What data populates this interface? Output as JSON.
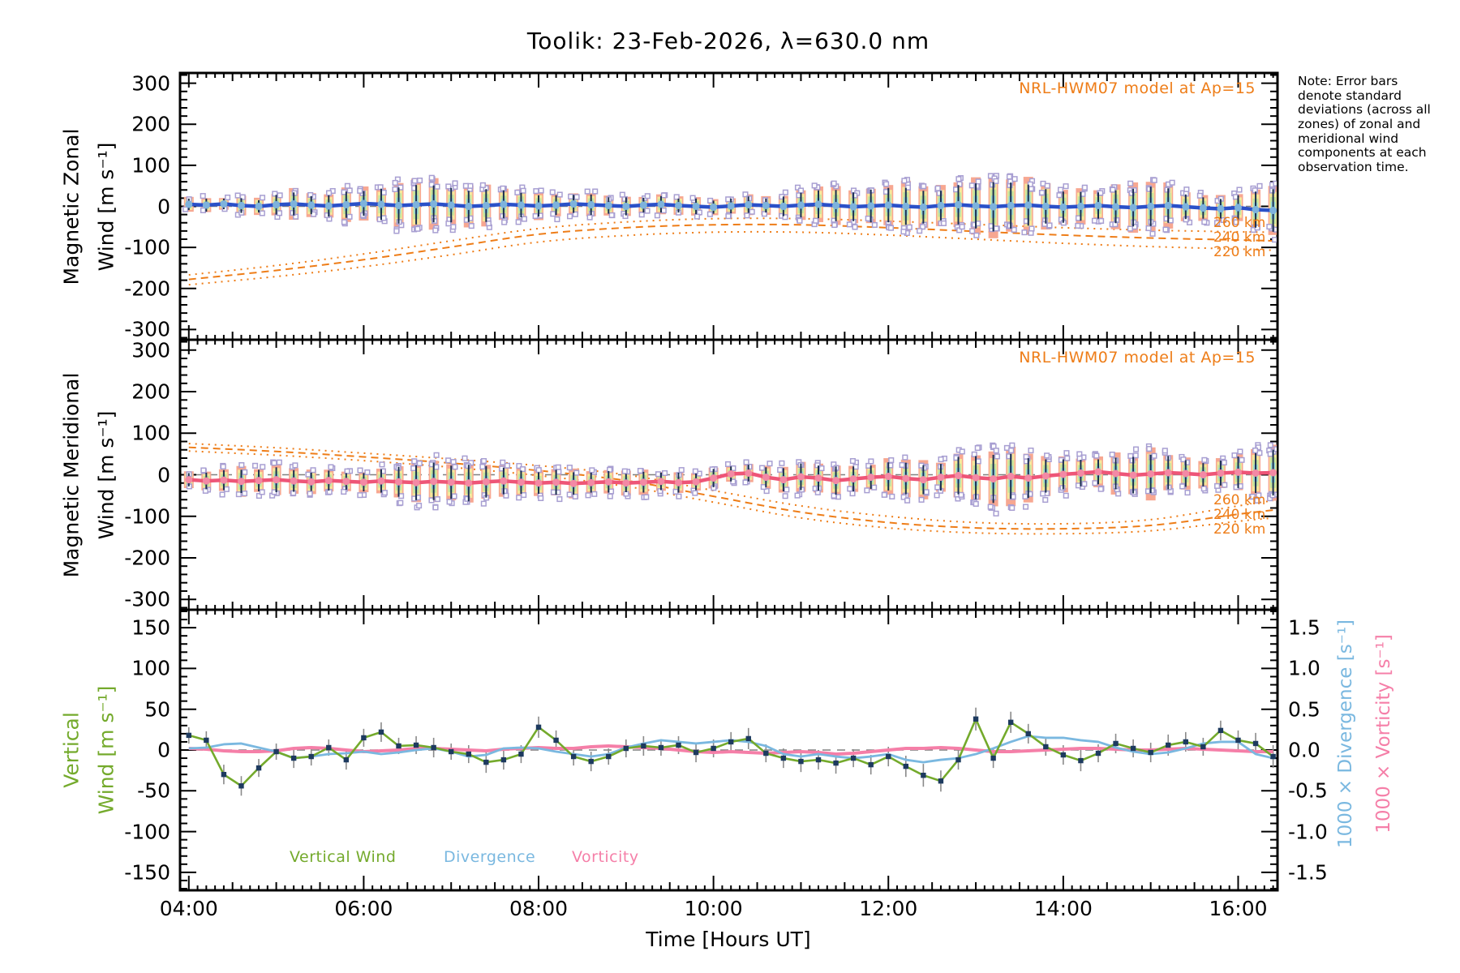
{
  "title": "Toolik: 23-Feb-2026, λ=630.0 nm",
  "note_text": "Note: Error bars denote standard deviations (across all zones) of zonal and meridional wind components at each observation time.",
  "x_axis": {
    "label": "Time [Hours UT]",
    "tick_labels": [
      "04:00",
      "06:00",
      "08:00",
      "10:00",
      "12:00",
      "14:00",
      "16:00"
    ],
    "tick_hours": [
      4,
      6,
      8,
      10,
      12,
      14,
      16
    ],
    "range_hours": [
      3.9,
      16.45
    ]
  },
  "panels": [
    {
      "id": "magnetic-zonal",
      "axis_title_line1": "Magnetic Zonal",
      "axis_title_line2": "Wind [m s⁻¹]",
      "y_tick_labels": [
        "300",
        "200",
        "100",
        "0",
        "-100",
        "-200",
        "-300"
      ],
      "y_tick_values": [
        300,
        200,
        100,
        0,
        -100,
        -200,
        -300
      ],
      "ylim": [
        -325,
        325
      ],
      "model_annotation": "NRL-HWM07 model at Ap=15",
      "model_altitude_labels": [
        "260 km",
        "240 km",
        "220 km"
      ]
    },
    {
      "id": "magnetic-meridional",
      "axis_title_line1": "Magnetic Meridional",
      "axis_title_line2": "Wind [m s⁻¹]",
      "y_tick_labels": [
        "300",
        "200",
        "100",
        "0",
        "-100",
        "-200",
        "-300"
      ],
      "y_tick_values": [
        300,
        200,
        100,
        0,
        -100,
        -200,
        -300
      ],
      "ylim": [
        -325,
        325
      ],
      "model_annotation": "NRL-HWM07 model at Ap=15",
      "model_altitude_labels": [
        "260 km",
        "240 km",
        "220 km"
      ]
    },
    {
      "id": "vertical-wind",
      "axis_title_line1": "Vertical",
      "axis_title_line2": "Wind [m s⁻¹]",
      "y_tick_labels": [
        "150",
        "100",
        "50",
        "0",
        "-50",
        "-100",
        "-150"
      ],
      "y_tick_values": [
        150,
        100,
        50,
        0,
        -50,
        -100,
        -150
      ],
      "ylim": [
        -172,
        172
      ],
      "right_tick_labels": [
        "1.5",
        "1.0",
        "0.5",
        "0.0",
        "-0.5",
        "-1.0",
        "-1.5"
      ],
      "right_tick_values": [
        1.5,
        1.0,
        0.5,
        0.0,
        -0.5,
        -1.0,
        -1.5
      ],
      "right_ylim": [
        -1.72,
        1.72
      ],
      "right_axes": [
        {
          "label": "1000 × Divergence [s⁻¹]",
          "color": "#7ab8e0"
        },
        {
          "label": "1000 × Vorticity [s⁻¹]",
          "color": "#f57fa8"
        }
      ],
      "legend": [
        {
          "label": "Vertical Wind",
          "color": "#74aa2c"
        },
        {
          "label": "Divergence",
          "color": "#7ab8e0"
        },
        {
          "label": "Vorticity",
          "color": "#f57fa8"
        }
      ]
    }
  ],
  "colors": {
    "model_orange": "#ee7d18",
    "zonal_line": "#2b50c8",
    "zonal_marker": "#7db2dc",
    "meridional_line": "#ee5577",
    "meridional_marker": "#f389a4",
    "errorbar_navy": "#1b3050",
    "scatter_square": "#a89fd2",
    "band_salmon": "#f7a791",
    "band_yellow": "#f5e69b",
    "band_green": "#c4e39c",
    "band_cyan": "#97d6dc",
    "vertical_green": "#74aa2c",
    "divergence_blue": "#7ab8e0",
    "vorticity_pink": "#f57fa8",
    "marker_navy": "#1d3a5f",
    "errorbar_gray": "#8a8a8a",
    "zero_line_gray": "#808080",
    "axis_black": "#000000"
  },
  "chart_data": [
    {
      "type": "line",
      "name": "magnetic_zonal_wind",
      "title": "Magnetic Zonal Wind",
      "ylabel": "Magnetic Zonal Wind [m s-1]",
      "xlabel": "Time [Hours UT]",
      "ylim": [
        -325,
        325
      ],
      "x_hours": [
        4.0,
        4.2,
        4.4,
        4.6,
        4.8,
        5.0,
        5.2,
        5.4,
        5.6,
        5.8,
        6.0,
        6.2,
        6.4,
        6.6,
        6.8,
        7.0,
        7.2,
        7.4,
        7.6,
        7.8,
        8.0,
        8.2,
        8.4,
        8.6,
        8.8,
        9.0,
        9.2,
        9.4,
        9.6,
        9.8,
        10.0,
        10.2,
        10.4,
        10.6,
        10.8,
        11.0,
        11.2,
        11.4,
        11.6,
        11.8,
        12.0,
        12.2,
        12.4,
        12.6,
        12.8,
        13.0,
        13.2,
        13.4,
        13.6,
        13.8,
        14.0,
        14.2,
        14.4,
        14.6,
        14.8,
        15.0,
        15.2,
        15.4,
        15.6,
        15.8,
        16.0,
        16.2,
        16.4
      ],
      "mean": [
        5,
        3,
        6,
        2,
        0,
        4,
        6,
        3,
        1,
        4,
        7,
        5,
        2,
        4,
        6,
        3,
        0,
        2,
        5,
        3,
        1,
        3,
        6,
        4,
        2,
        0,
        3,
        5,
        2,
        0,
        -2,
        1,
        4,
        2,
        0,
        3,
        5,
        2,
        -1,
        1,
        3,
        0,
        -2,
        2,
        4,
        1,
        -1,
        2,
        3,
        0,
        -2,
        0,
        2,
        -1,
        -3,
        0,
        2,
        -1,
        -4,
        -6,
        -3,
        -8,
        -10
      ],
      "std": [
        14,
        16,
        13,
        18,
        15,
        24,
        28,
        22,
        26,
        32,
        30,
        38,
        44,
        48,
        45,
        42,
        38,
        40,
        34,
        30,
        26,
        24,
        22,
        25,
        20,
        22,
        18,
        20,
        17,
        19,
        16,
        18,
        20,
        17,
        24,
        30,
        34,
        38,
        35,
        40,
        42,
        45,
        40,
        36,
        48,
        55,
        60,
        56,
        50,
        42,
        38,
        35,
        32,
        40,
        46,
        48,
        42,
        30,
        26,
        24,
        30,
        44,
        52
      ],
      "model": {
        "name": "NRL-HWM07 model at Ap=15",
        "x_hours": [
          4,
          5,
          6,
          7,
          8,
          9,
          10,
          11,
          12,
          13,
          14,
          15,
          16,
          16.4
        ],
        "alt_260_km": [
          -167,
          -144,
          -116,
          -84,
          -54,
          -38,
          -30,
          -30,
          -36,
          -44,
          -52,
          -58,
          -62,
          -63
        ],
        "alt_240_km": [
          -178,
          -156,
          -130,
          -99,
          -68,
          -52,
          -45,
          -45,
          -52,
          -61,
          -70,
          -77,
          -82,
          -84
        ],
        "alt_220_km": [
          -191,
          -171,
          -147,
          -118,
          -87,
          -71,
          -63,
          -63,
          -70,
          -80,
          -90,
          -98,
          -104,
          -107
        ]
      }
    },
    {
      "type": "line",
      "name": "magnetic_meridional_wind",
      "title": "Magnetic Meridional Wind",
      "ylabel": "Magnetic Meridional Wind [m s-1]",
      "xlabel": "Time [Hours UT]",
      "ylim": [
        -325,
        325
      ],
      "x_hours": [
        4.0,
        4.2,
        4.4,
        4.6,
        4.8,
        5.0,
        5.2,
        5.4,
        5.6,
        5.8,
        6.0,
        6.2,
        6.4,
        6.6,
        6.8,
        7.0,
        7.2,
        7.4,
        7.6,
        7.8,
        8.0,
        8.2,
        8.4,
        8.6,
        8.8,
        9.0,
        9.2,
        9.4,
        9.6,
        9.8,
        10.0,
        10.2,
        10.4,
        10.6,
        10.8,
        11.0,
        11.2,
        11.4,
        11.6,
        11.8,
        12.0,
        12.2,
        12.4,
        12.6,
        12.8,
        13.0,
        13.2,
        13.4,
        13.6,
        13.8,
        14.0,
        14.2,
        14.4,
        14.6,
        14.8,
        15.0,
        15.2,
        15.4,
        15.6,
        15.8,
        16.0,
        16.2,
        16.4
      ],
      "mean": [
        -12,
        -15,
        -13,
        -16,
        -14,
        -12,
        -15,
        -17,
        -14,
        -16,
        -18,
        -15,
        -17,
        -19,
        -16,
        -18,
        -20,
        -17,
        -15,
        -18,
        -20,
        -18,
        -21,
        -19,
        -17,
        -20,
        -18,
        -16,
        -19,
        -17,
        -8,
        2,
        4,
        -6,
        -12,
        -5,
        -8,
        -14,
        -10,
        -6,
        -4,
        -9,
        -12,
        -6,
        -2,
        -7,
        -10,
        -4,
        -8,
        -3,
        1,
        4,
        7,
        3,
        -1,
        2,
        5,
        3,
        0,
        4,
        6,
        4,
        5
      ],
      "std": [
        16,
        20,
        24,
        28,
        26,
        30,
        26,
        22,
        24,
        20,
        22,
        28,
        36,
        42,
        45,
        40,
        44,
        38,
        32,
        28,
        26,
        30,
        27,
        24,
        26,
        22,
        25,
        21,
        24,
        20,
        22,
        18,
        20,
        24,
        28,
        32,
        30,
        34,
        30,
        28,
        34,
        38,
        35,
        32,
        45,
        52,
        58,
        54,
        48,
        40,
        36,
        32,
        30,
        38,
        44,
        46,
        40,
        32,
        28,
        30,
        38,
        48,
        55
      ],
      "model": {
        "name": "NRL-HWM07 model at Ap=15",
        "x_hours": [
          4,
          5,
          6,
          7,
          8,
          9,
          10,
          11,
          12,
          13,
          14,
          15,
          16,
          16.4
        ],
        "alt_260_km": [
          75,
          65,
          52,
          38,
          22,
          0,
          -38,
          -75,
          -100,
          -115,
          -118,
          -108,
          -75,
          -62
        ],
        "alt_240_km": [
          66,
          56,
          43,
          28,
          10,
          -14,
          -52,
          -90,
          -115,
          -128,
          -130,
          -122,
          -95,
          -85
        ],
        "alt_220_km": [
          57,
          47,
          34,
          18,
          -2,
          -28,
          -66,
          -104,
          -128,
          -140,
          -142,
          -135,
          -112,
          -104
        ]
      }
    },
    {
      "type": "line",
      "name": "vertical_wind_divergence_vorticity",
      "title": "Vertical Wind, Divergence, Vorticity",
      "xlabel": "Time [Hours UT]",
      "left_ylim": [
        -172,
        172
      ],
      "right_ylim": [
        -1.72,
        1.72
      ],
      "x_hours": [
        4.0,
        4.2,
        4.4,
        4.6,
        4.8,
        5.0,
        5.2,
        5.4,
        5.6,
        5.8,
        6.0,
        6.2,
        6.4,
        6.6,
        6.8,
        7.0,
        7.2,
        7.4,
        7.6,
        7.8,
        8.0,
        8.2,
        8.4,
        8.6,
        8.8,
        9.0,
        9.2,
        9.4,
        9.6,
        9.8,
        10.0,
        10.2,
        10.4,
        10.6,
        10.8,
        11.0,
        11.2,
        11.4,
        11.6,
        11.8,
        12.0,
        12.2,
        12.4,
        12.6,
        12.8,
        13.0,
        13.2,
        13.4,
        13.6,
        13.8,
        14.0,
        14.2,
        14.4,
        14.6,
        14.8,
        15.0,
        15.2,
        15.4,
        15.6,
        15.8,
        16.0,
        16.2,
        16.4
      ],
      "series": [
        {
          "name": "Vertical Wind",
          "axis": "left",
          "units": "m s-1",
          "values": [
            18,
            12,
            -30,
            -44,
            -22,
            -2,
            -10,
            -8,
            3,
            -12,
            15,
            22,
            5,
            6,
            3,
            -2,
            -5,
            -15,
            -12,
            -5,
            28,
            12,
            -8,
            -14,
            -8,
            2,
            5,
            3,
            6,
            -3,
            2,
            10,
            14,
            -4,
            -10,
            -14,
            -12,
            -16,
            -10,
            -18,
            -8,
            -20,
            -31,
            -38,
            -12,
            38,
            -10,
            34,
            20,
            4,
            -6,
            -13,
            -4,
            8,
            2,
            -3,
            6,
            10,
            4,
            24,
            12,
            8,
            -8
          ],
          "err": [
            10,
            11,
            12,
            12,
            11,
            10,
            12,
            11,
            10,
            12,
            11,
            12,
            10,
            11,
            12,
            10,
            11,
            13,
            12,
            11,
            13,
            12,
            11,
            12,
            10,
            11,
            12,
            10,
            11,
            12,
            11,
            12,
            13,
            11,
            12,
            13,
            12,
            13,
            11,
            12,
            12,
            13,
            14,
            13,
            12,
            14,
            12,
            13,
            12,
            11,
            12,
            13,
            11,
            12,
            11,
            12,
            13,
            12,
            11,
            12,
            12,
            13,
            14
          ]
        },
        {
          "name": "1000 × Divergence",
          "axis": "right",
          "units": "s-1",
          "values": [
            0.02,
            0.03,
            0.07,
            0.08,
            0.03,
            -0.02,
            -0.1,
            -0.08,
            -0.05,
            -0.04,
            -0.02,
            -0.05,
            -0.03,
            0.0,
            0.02,
            -0.02,
            -0.08,
            -0.06,
            0.02,
            0.03,
            0.02,
            -0.02,
            -0.05,
            -0.08,
            -0.05,
            0.03,
            0.08,
            0.12,
            0.1,
            0.08,
            0.1,
            0.12,
            0.1,
            0.05,
            -0.05,
            -0.08,
            -0.05,
            -0.08,
            -0.1,
            -0.08,
            -0.05,
            -0.12,
            -0.15,
            -0.12,
            -0.1,
            -0.05,
            0.02,
            0.1,
            0.17,
            0.15,
            0.15,
            0.12,
            0.1,
            0.03,
            -0.02,
            -0.05,
            -0.03,
            0.02,
            0.08,
            0.1,
            0.1,
            -0.05,
            -0.1
          ]
        },
        {
          "name": "1000 × Vorticity",
          "axis": "right",
          "units": "s-1",
          "values": [
            0.02,
            0.01,
            -0.01,
            -0.02,
            -0.02,
            -0.01,
            0.02,
            0.03,
            0.02,
            0.0,
            -0.02,
            -0.01,
            0.0,
            0.02,
            0.02,
            0.01,
            0.0,
            -0.01,
            0.01,
            0.02,
            0.03,
            0.02,
            0.02,
            0.04,
            0.05,
            0.04,
            0.03,
            0.02,
            0.0,
            -0.02,
            -0.03,
            -0.02,
            -0.03,
            -0.04,
            -0.03,
            -0.02,
            -0.03,
            -0.05,
            -0.04,
            -0.02,
            0.0,
            0.02,
            0.02,
            0.03,
            0.02,
            0.0,
            -0.02,
            -0.02,
            -0.01,
            0.0,
            0.01,
            0.02,
            0.02,
            0.01,
            0.0,
            0.0,
            0.01,
            0.02,
            0.01,
            0.0,
            -0.01,
            -0.02,
            -0.02
          ]
        }
      ]
    }
  ]
}
